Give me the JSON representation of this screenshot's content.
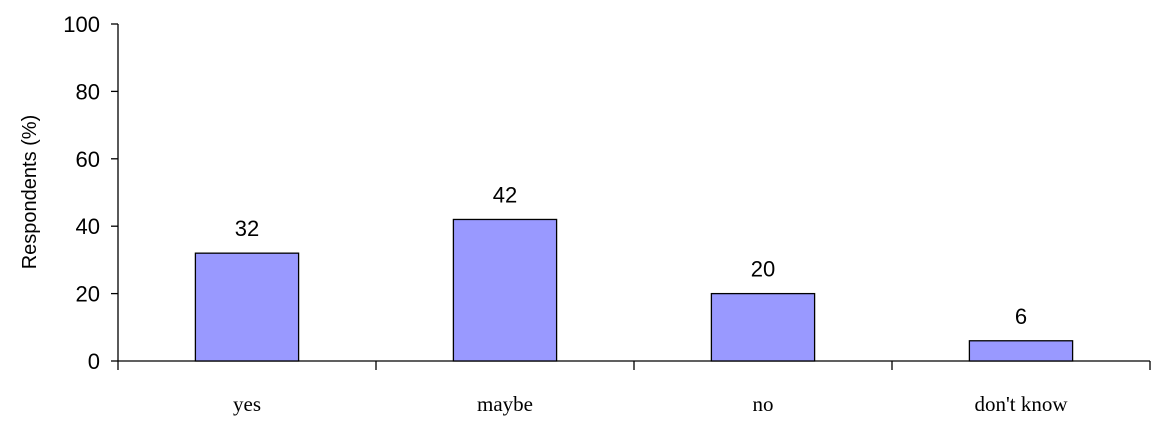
{
  "chart_data": {
    "type": "bar",
    "categories": [
      "yes",
      "maybe",
      "no",
      "don't know"
    ],
    "values": [
      32,
      42,
      20,
      6
    ],
    "data_labels": [
      "32",
      "42",
      "20",
      "6"
    ],
    "title": "",
    "xlabel": "",
    "ylabel": "Respondents (%)",
    "ylim": [
      0,
      100
    ],
    "yticks": [
      "0",
      "20",
      "40",
      "60",
      "80",
      "100"
    ],
    "grid": false,
    "bar_color": "#9999ff",
    "bar_edge_color": "#000000"
  }
}
